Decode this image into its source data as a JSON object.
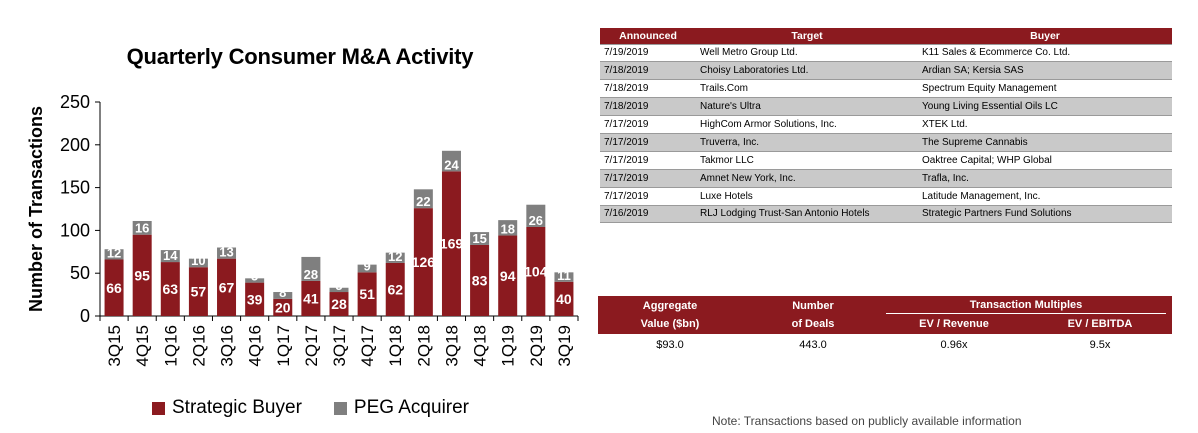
{
  "chart_data": {
    "type": "bar",
    "stacked": true,
    "title": "Quarterly Consumer M&A Activity",
    "xlabel": "",
    "ylabel": "Number of Transactions",
    "ylim": [
      0,
      250
    ],
    "yticks": [
      0,
      50,
      100,
      150,
      200,
      250
    ],
    "categories": [
      "3Q15",
      "4Q15",
      "1Q16",
      "2Q16",
      "3Q16",
      "4Q16",
      "1Q17",
      "2Q17",
      "3Q17",
      "4Q17",
      "1Q18",
      "2Q18",
      "3Q18",
      "4Q18",
      "1Q19",
      "2Q19",
      "3Q19"
    ],
    "series": [
      {
        "name": "Strategic Buyer",
        "color": "#8b1a1f",
        "values": [
          66,
          95,
          63,
          57,
          67,
          39,
          20,
          41,
          28,
          51,
          62,
          126,
          169,
          83,
          94,
          104,
          40
        ]
      },
      {
        "name": "PEG Acquirer",
        "color": "#7f7f7f",
        "values": [
          12,
          16,
          14,
          10,
          13,
          5,
          8,
          28,
          5,
          9,
          12,
          22,
          24,
          15,
          18,
          26,
          11
        ]
      }
    ],
    "legend_position": "bottom"
  },
  "deals_table": {
    "headers": [
      "Announced",
      "Target",
      "Buyer"
    ],
    "rows": [
      [
        "7/19/2019",
        "Well Metro Group Ltd.",
        "K11 Sales & Ecommerce Co. Ltd."
      ],
      [
        "7/18/2019",
        "Choisy Laboratories Ltd.",
        "Ardian SA; Kersia SAS"
      ],
      [
        "7/18/2019",
        "Trails.Com",
        "Spectrum Equity Management"
      ],
      [
        "7/18/2019",
        "Nature's Ultra",
        "Young Living Essential Oils LC"
      ],
      [
        "7/17/2019",
        "HighCom Armor Solutions, Inc.",
        "XTEK Ltd."
      ],
      [
        "7/17/2019",
        "Truverra, Inc.",
        "The Supreme Cannabis"
      ],
      [
        "7/17/2019",
        "Takmor LLC",
        "Oaktree Capital; WHP Global"
      ],
      [
        "7/17/2019",
        "Amnet New York, Inc.",
        "Trafla, Inc."
      ],
      [
        "7/17/2019",
        "Luxe Hotels",
        "Latitude Management, Inc."
      ],
      [
        "7/16/2019",
        "RLJ Lodging Trust-San Antonio Hotels",
        "Strategic Partners Fund Solutions"
      ]
    ]
  },
  "summary": {
    "agg_line1": "Aggregate",
    "agg_line2": "Value ($bn)",
    "num_line1": "Number",
    "num_line2": "of Deals",
    "multiples_label": "Transaction Multiples",
    "ev_rev_label": "EV / Revenue",
    "ev_ebitda_label": "EV / EBITDA",
    "agg_value": "$93.0",
    "num_value": "443.0",
    "ev_rev_value": "0.96x",
    "ev_ebitda_value": "9.5x"
  },
  "note": "Note: Transactions based on publicly available information"
}
